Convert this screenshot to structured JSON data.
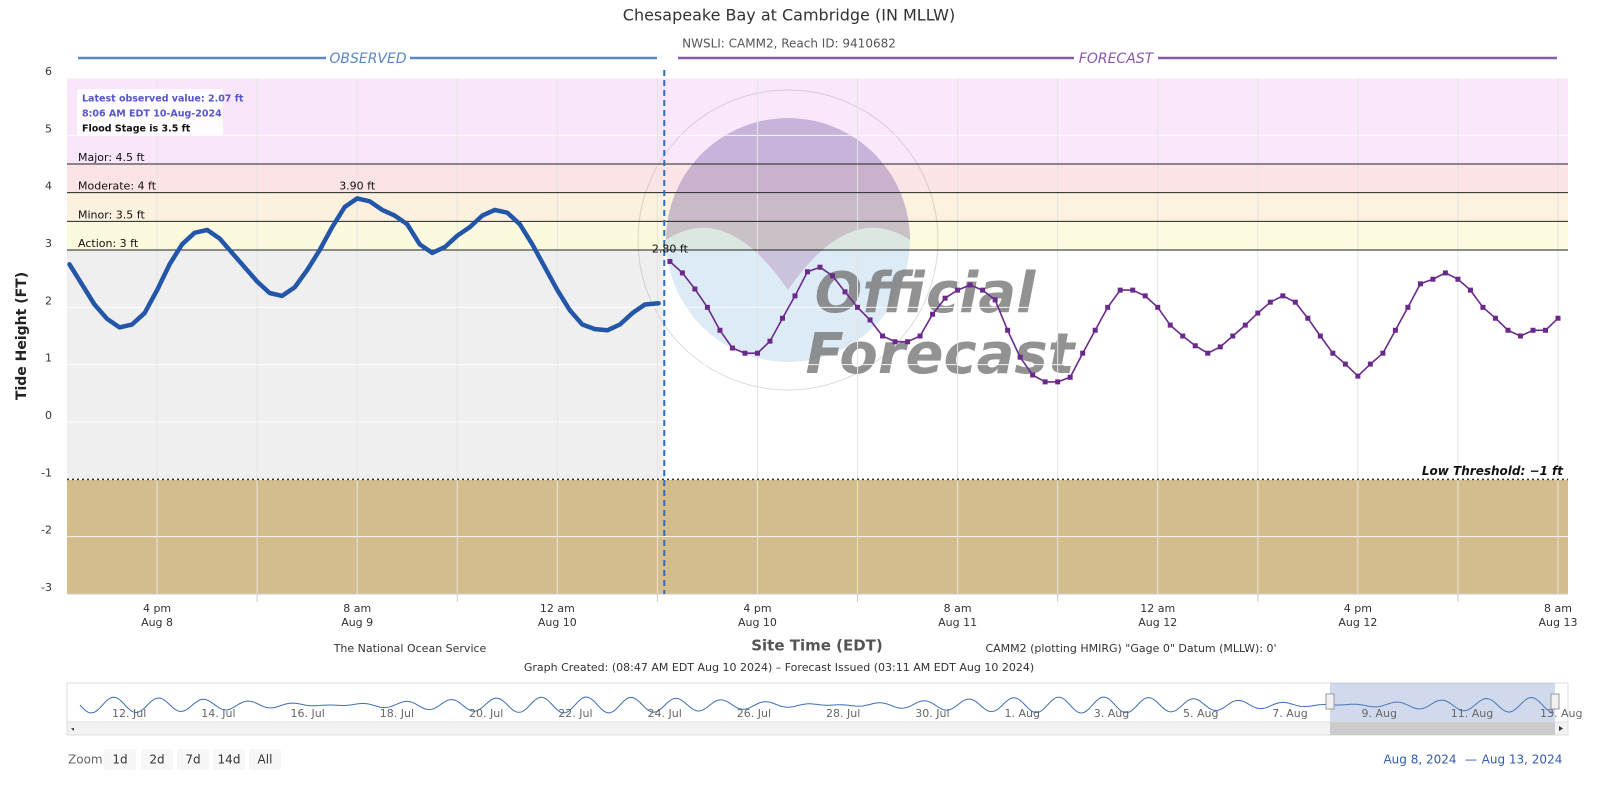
{
  "chart_data": {
    "type": "line",
    "title": "Chesapeake Bay at Cambridge (IN MLLW)",
    "subtitle": "NWSLI: CAMM2, Reach ID: 9410682",
    "observed_label": "OBSERVED",
    "forecast_label": "FORECAST",
    "ylabel": "Tide Height (FT)",
    "xlabel": "Site Time (EDT)",
    "ylim": [
      -3,
      6
    ],
    "yticks": [
      -3,
      -2,
      -1,
      0,
      1,
      2,
      3,
      4,
      5,
      6
    ],
    "grid": true,
    "xlim": [
      "2024-08-08 08:48",
      "2024-08-13 08:48"
    ],
    "xticks": [
      {
        "value": "2024-08-08 16:00",
        "label": [
          "4 pm",
          "Aug 8"
        ]
      },
      {
        "value": "2024-08-09 08:00",
        "label": [
          "8 am",
          "Aug 9"
        ]
      },
      {
        "value": "2024-08-10 00:00",
        "label": [
          "12 am",
          "Aug 10"
        ]
      },
      {
        "value": "2024-08-10 16:00",
        "label": [
          "4 pm",
          "Aug 10"
        ]
      },
      {
        "value": "2024-08-11 08:00",
        "label": [
          "8 am",
          "Aug 11"
        ]
      },
      {
        "value": "2024-08-12 00:00",
        "label": [
          "12 am",
          "Aug 12"
        ]
      },
      {
        "value": "2024-08-12 16:00",
        "label": [
          "4 pm",
          "Aug 12"
        ]
      },
      {
        "value": "2024-08-13 08:00",
        "label": [
          "8 am",
          "Aug 13"
        ]
      }
    ],
    "xminorticks": [
      "2024-08-09 00:00",
      "2024-08-09 16:00",
      "2024-08-10 08:00",
      "2024-08-11 00:00",
      "2024-08-11 16:00",
      "2024-08-12 08:00",
      "2024-08-13 00:00"
    ],
    "flood_stages": [
      {
        "label": "Action: 3 ft",
        "value": 3,
        "color": "#fdfbdc"
      },
      {
        "label": "Minor: 3.5 ft",
        "value": 3.5,
        "color": "#fdf0dc"
      },
      {
        "label": "Moderate: 4 ft",
        "value": 4,
        "color": "#fde1e4"
      },
      {
        "label": "Major: 4.5 ft",
        "value": 4.5,
        "color": "#f9e4fb"
      }
    ],
    "low_threshold": {
      "label": "Low Threshold: −1 ft",
      "value": -1,
      "color": "#d4bd8c"
    },
    "info": [
      "Latest observed value: 2.07 ft",
      "8:06 AM EDT 10-Aug-2024",
      "Flood Stage is 3.5 ft"
    ],
    "series": [
      {
        "name": "Observed",
        "color": "#2356a8",
        "x": [
          "2024-08-08 09:00",
          "2024-08-08 10:00",
          "2024-08-08 11:00",
          "2024-08-08 12:00",
          "2024-08-08 13:00",
          "2024-08-08 14:00",
          "2024-08-08 15:00",
          "2024-08-08 16:00",
          "2024-08-08 17:00",
          "2024-08-08 18:00",
          "2024-08-08 19:00",
          "2024-08-08 20:00",
          "2024-08-08 21:00",
          "2024-08-08 22:00",
          "2024-08-08 23:00",
          "2024-08-09 00:00",
          "2024-08-09 01:00",
          "2024-08-09 02:00",
          "2024-08-09 03:00",
          "2024-08-09 04:00",
          "2024-08-09 05:00",
          "2024-08-09 06:00",
          "2024-08-09 07:00",
          "2024-08-09 08:00",
          "2024-08-09 09:00",
          "2024-08-09 10:00",
          "2024-08-09 11:00",
          "2024-08-09 12:00",
          "2024-08-09 13:00",
          "2024-08-09 14:00",
          "2024-08-09 15:00",
          "2024-08-09 16:00",
          "2024-08-09 17:00",
          "2024-08-09 18:00",
          "2024-08-09 19:00",
          "2024-08-09 20:00",
          "2024-08-09 21:00",
          "2024-08-09 22:00",
          "2024-08-09 23:00",
          "2024-08-10 00:00",
          "2024-08-10 01:00",
          "2024-08-10 02:00",
          "2024-08-10 03:00",
          "2024-08-10 04:00",
          "2024-08-10 05:00",
          "2024-08-10 06:00",
          "2024-08-10 07:00",
          "2024-08-10 08:06"
        ],
        "values": [
          2.75,
          2.4,
          2.05,
          1.8,
          1.65,
          1.7,
          1.9,
          2.3,
          2.75,
          3.1,
          3.3,
          3.35,
          3.2,
          2.95,
          2.7,
          2.45,
          2.25,
          2.2,
          2.35,
          2.65,
          3.0,
          3.4,
          3.75,
          3.9,
          3.85,
          3.7,
          3.6,
          3.45,
          3.1,
          2.95,
          3.05,
          3.25,
          3.4,
          3.6,
          3.7,
          3.65,
          3.45,
          3.1,
          2.7,
          2.3,
          1.95,
          1.7,
          1.62,
          1.6,
          1.7,
          1.9,
          2.05,
          2.07
        ]
      },
      {
        "name": "Forecast",
        "color": "#6a2a8c",
        "x": [
          "2024-08-10 09:00",
          "2024-08-10 10:00",
          "2024-08-10 11:00",
          "2024-08-10 12:00",
          "2024-08-10 13:00",
          "2024-08-10 14:00",
          "2024-08-10 15:00",
          "2024-08-10 16:00",
          "2024-08-10 17:00",
          "2024-08-10 18:00",
          "2024-08-10 19:00",
          "2024-08-10 20:00",
          "2024-08-10 21:00",
          "2024-08-10 22:00",
          "2024-08-10 23:00",
          "2024-08-11 00:00",
          "2024-08-11 01:00",
          "2024-08-11 02:00",
          "2024-08-11 03:00",
          "2024-08-11 04:00",
          "2024-08-11 05:00",
          "2024-08-11 06:00",
          "2024-08-11 07:00",
          "2024-08-11 08:00",
          "2024-08-11 09:00",
          "2024-08-11 10:00",
          "2024-08-11 11:00",
          "2024-08-11 12:00",
          "2024-08-11 13:00",
          "2024-08-11 14:00",
          "2024-08-11 15:00",
          "2024-08-11 16:00",
          "2024-08-11 17:00",
          "2024-08-11 18:00",
          "2024-08-11 19:00",
          "2024-08-11 20:00",
          "2024-08-11 21:00",
          "2024-08-11 22:00",
          "2024-08-11 23:00",
          "2024-08-12 00:00",
          "2024-08-12 01:00",
          "2024-08-12 02:00",
          "2024-08-12 03:00",
          "2024-08-12 04:00",
          "2024-08-12 05:00",
          "2024-08-12 06:00",
          "2024-08-12 07:00",
          "2024-08-12 08:00",
          "2024-08-12 09:00",
          "2024-08-12 10:00",
          "2024-08-12 11:00",
          "2024-08-12 12:00",
          "2024-08-12 13:00",
          "2024-08-12 14:00",
          "2024-08-12 15:00",
          "2024-08-12 16:00",
          "2024-08-12 17:00",
          "2024-08-12 18:00",
          "2024-08-12 19:00",
          "2024-08-12 20:00",
          "2024-08-12 21:00",
          "2024-08-12 22:00",
          "2024-08-12 23:00",
          "2024-08-13 00:00",
          "2024-08-13 01:00",
          "2024-08-13 02:00",
          "2024-08-13 03:00",
          "2024-08-13 04:00",
          "2024-08-13 05:00",
          "2024-08-13 06:00",
          "2024-08-13 07:00",
          "2024-08-13 08:00"
        ],
        "values": [
          2.8,
          2.6,
          2.32,
          2.0,
          1.6,
          1.29,
          1.2,
          1.2,
          1.41,
          1.81,
          2.2,
          2.62,
          2.7,
          2.55,
          2.27,
          2.0,
          1.78,
          1.5,
          1.4,
          1.4,
          1.5,
          1.88,
          2.16,
          2.3,
          2.39,
          2.3,
          2.13,
          1.6,
          1.13,
          0.82,
          0.7,
          0.7,
          0.78,
          1.2,
          1.6,
          2.0,
          2.3,
          2.3,
          2.2,
          2.0,
          1.69,
          1.5,
          1.33,
          1.2,
          1.31,
          1.5,
          1.69,
          1.9,
          2.09,
          2.2,
          2.09,
          1.81,
          1.5,
          1.2,
          1.01,
          0.8,
          1.01,
          1.2,
          1.6,
          2.0,
          2.41,
          2.49,
          2.6,
          2.49,
          2.3,
          2.0,
          1.81,
          1.6,
          1.5,
          1.6,
          1.6,
          1.81
        ]
      }
    ],
    "annotations": [
      {
        "label": "3.90 ft",
        "value": 3.9,
        "x": "2024-08-09 08:00"
      },
      {
        "label": "2.80 ft",
        "value": 2.8,
        "x": "2024-08-10 09:00"
      }
    ],
    "watermark": [
      "Official",
      "Forecast"
    ],
    "source": "The National Ocean Service",
    "datum": "CAMM2 (plotting HMIRG) \"Gage 0\" Datum (MLLW): 0'",
    "created": "Graph Created: (08:47 AM EDT Aug 10 2024) – Forecast Issued (03:11 AM EDT Aug 10 2024)",
    "navigator_labels": [
      "12. Jul",
      "14. Jul",
      "16. Jul",
      "18. Jul",
      "20. Jul",
      "22. Jul",
      "24. Jul",
      "26. Jul",
      "28. Jul",
      "30. Jul",
      "1. Aug",
      "3. Aug",
      "5. Aug",
      "7. Aug",
      "9. Aug",
      "11. Aug",
      "13. Aug"
    ],
    "zoom_label": "Zoom",
    "zoom_buttons": [
      "1d",
      "2d",
      "7d",
      "14d",
      "All"
    ],
    "range": [
      "Aug 8, 2024",
      "—",
      "Aug 13, 2024"
    ]
  }
}
